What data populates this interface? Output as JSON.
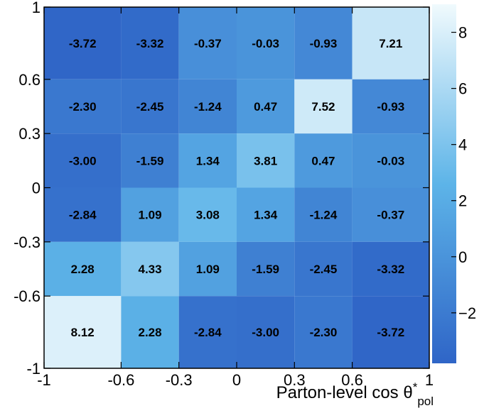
{
  "chart_data": {
    "type": "heatmap",
    "title": "",
    "xlabel": "Parton-level cos θ*pol",
    "xlabel_main": "Parton-level cos θ",
    "xlabel_sup": "*",
    "xlabel_sub": "pol",
    "ylabel": "",
    "x_edges": [
      -1,
      -0.6,
      -0.3,
      0,
      0.3,
      0.6,
      1
    ],
    "y_edges": [
      -1,
      -0.6,
      -0.3,
      0,
      0.3,
      0.6,
      1
    ],
    "x_tick_labels": [
      "-1",
      "-0.6",
      "-0.3",
      "0",
      "0.3",
      "0.6",
      "1"
    ],
    "y_tick_labels": [
      "-1",
      "-0.6",
      "-0.3",
      "0",
      "0.3",
      "0.6",
      "1"
    ],
    "values_rows_top_to_bottom": [
      [
        -3.72,
        -3.32,
        -0.37,
        -0.03,
        -0.93,
        7.21
      ],
      [
        -2.3,
        -2.45,
        -1.24,
        0.47,
        7.52,
        -0.93
      ],
      [
        -3.0,
        -1.59,
        1.34,
        3.81,
        0.47,
        -0.03
      ],
      [
        -2.84,
        1.09,
        3.08,
        1.34,
        -1.24,
        -0.37
      ],
      [
        2.28,
        4.33,
        1.09,
        -1.59,
        -2.45,
        -3.32
      ],
      [
        8.12,
        2.28,
        -2.84,
        -3.0,
        -2.3,
        -3.72
      ]
    ],
    "cell_labels_rows_top_to_bottom": [
      [
        "-3.72",
        "-3.32",
        "-0.37",
        "-0.03",
        "-0.93",
        "7.21"
      ],
      [
        "-2.30",
        "-2.45",
        "-1.24",
        "0.47",
        "7.52",
        "-0.93"
      ],
      [
        "-3.00",
        "-1.59",
        "1.34",
        "3.81",
        "0.47",
        "-0.03"
      ],
      [
        "-2.84",
        "1.09",
        "3.08",
        "1.34",
        "-1.24",
        "-0.37"
      ],
      [
        "2.28",
        "4.33",
        "1.09",
        "-1.59",
        "-2.45",
        "-3.32"
      ],
      [
        "8.12",
        "2.28",
        "-2.84",
        "-3.00",
        "-2.30",
        "-3.72"
      ]
    ],
    "colorbar": {
      "range": [
        -3.8,
        9.0
      ],
      "tick_values": [
        -2,
        0,
        2,
        4,
        6,
        8
      ],
      "tick_labels": [
        "−2",
        "0",
        "2",
        "4",
        "6",
        "8"
      ],
      "color_low": "#2f65c7",
      "color_mid": "#5db4e8",
      "color_high": "#f0fafd"
    },
    "grid": false,
    "legend": "colorbar-right"
  }
}
